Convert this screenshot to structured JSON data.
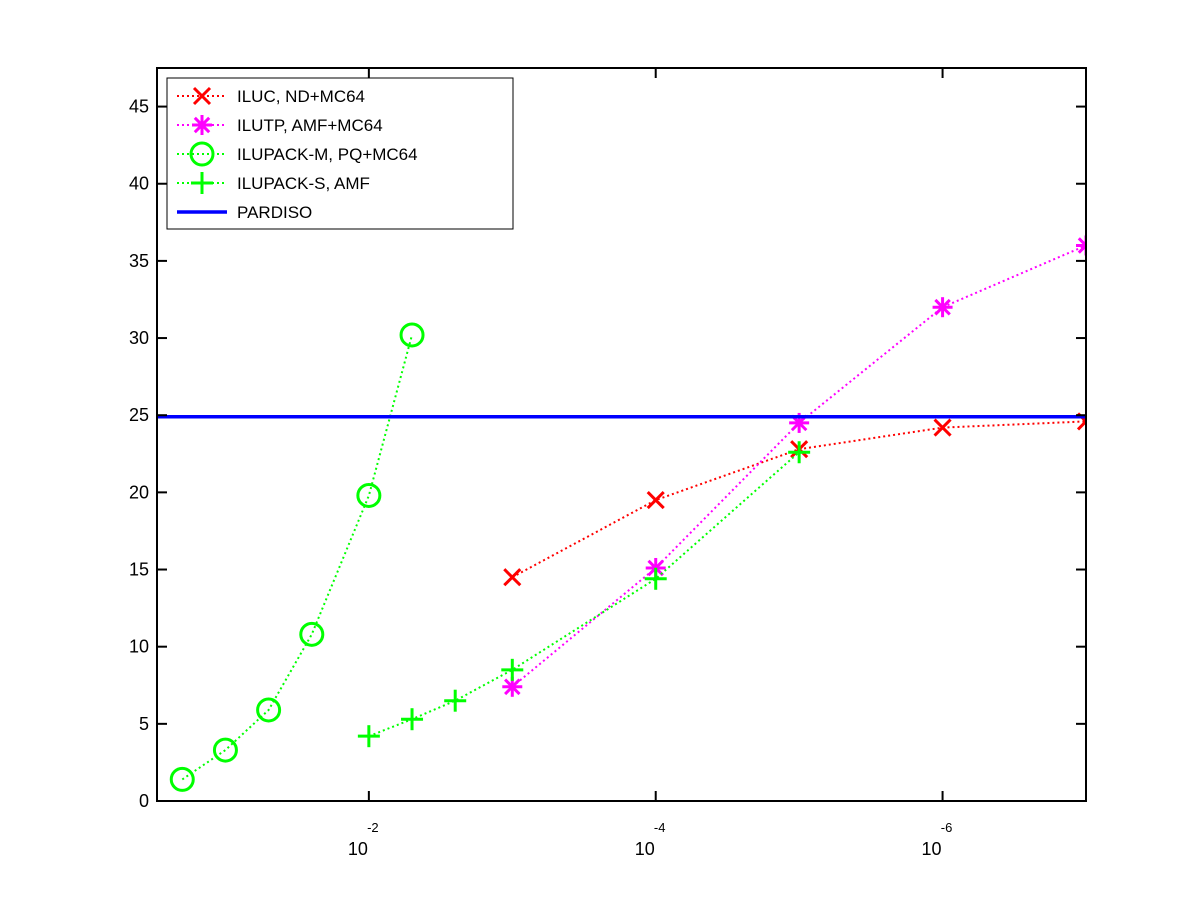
{
  "chart_data": {
    "type": "line",
    "title": "",
    "xlabel": "",
    "ylabel": "",
    "xscale": "log",
    "x_reversed": true,
    "xlim": [
      0.3,
      1e-07
    ],
    "ylim": [
      0,
      47.5
    ],
    "yticks": [
      0,
      5,
      10,
      15,
      20,
      25,
      30,
      35,
      40,
      45
    ],
    "xticks": [
      {
        "value": 0.01,
        "base": "10",
        "exp": "-2"
      },
      {
        "value": 0.0001,
        "base": "10",
        "exp": "-4"
      },
      {
        "value": 1e-06,
        "base": "10",
        "exp": "-6"
      }
    ],
    "grid": false,
    "legend_position": "top-left",
    "series": [
      {
        "name": "ILUC,  ND+MC64",
        "color": "#ff0000",
        "marker": "x",
        "line": "dotted",
        "points": [
          [
            0.001,
            14.5
          ],
          [
            0.0001,
            19.5
          ],
          [
            1e-05,
            22.8
          ],
          [
            1e-06,
            24.2
          ],
          [
            1e-07,
            24.6
          ]
        ]
      },
      {
        "name": "ILUTP, AMF+MC64",
        "color": "#ff00ff",
        "marker": "asterisk",
        "line": "dotted",
        "points": [
          [
            0.001,
            7.4
          ],
          [
            0.0001,
            15.1
          ],
          [
            1e-05,
            24.5
          ],
          [
            1e-06,
            32.0
          ],
          [
            1e-07,
            36.0
          ]
        ]
      },
      {
        "name": "ILUPACK-M, PQ+MC64",
        "color": "#00ff00",
        "marker": "circle",
        "line": "dotted",
        "points": [
          [
            0.2,
            1.4
          ],
          [
            0.1,
            3.3
          ],
          [
            0.05,
            5.9
          ],
          [
            0.025,
            10.8
          ],
          [
            0.01,
            19.8
          ],
          [
            0.005,
            30.2
          ]
        ]
      },
      {
        "name": "ILUPACK-S, AMF",
        "color": "#00ff00",
        "marker": "plus",
        "line": "dotted",
        "points": [
          [
            0.01,
            4.2
          ],
          [
            0.005,
            5.3
          ],
          [
            0.0025,
            6.5
          ],
          [
            0.001,
            8.5
          ],
          [
            0.0001,
            14.4
          ],
          [
            1e-05,
            22.6
          ]
        ]
      },
      {
        "name": "PARDISO",
        "color": "#0000ff",
        "marker": "none",
        "line": "solid",
        "constant": 24.9
      }
    ]
  }
}
